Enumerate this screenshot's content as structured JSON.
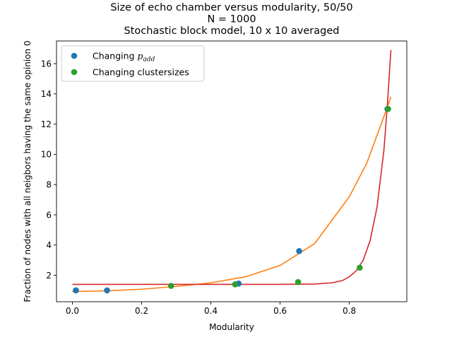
{
  "chart_data": {
    "type": "scatter",
    "title_lines": [
      "Size of echo chamber versus modularity, 50/50",
      "N = 1000",
      "Stochastic block model, 10 x 10 averaged"
    ],
    "xlabel": "Modularity",
    "ylabel": "Fraction of nodes with all neigbors having the same opinion 0",
    "xlim": [
      -0.046,
      0.966
    ],
    "ylim": [
      0.25,
      17.5
    ],
    "xticks": [
      0.0,
      0.2,
      0.4,
      0.6,
      0.8
    ],
    "xtick_labels": [
      "0.0",
      "0.2",
      "0.4",
      "0.6",
      "0.8"
    ],
    "yticks": [
      2,
      4,
      6,
      8,
      10,
      12,
      14,
      16
    ],
    "ytick_labels": [
      "2",
      "4",
      "6",
      "8",
      "10",
      "12",
      "14",
      "16"
    ],
    "legend_position": "upper-left",
    "series": [
      {
        "name_prefix": "Changing ",
        "name_math_base": "p",
        "name_math_sub": "add",
        "kind": "points",
        "color": "#1f77b4",
        "x": [
          0.01,
          0.1,
          0.48,
          0.655,
          0.91
        ],
        "y": [
          1.0,
          1.0,
          1.45,
          3.6,
          13.0
        ]
      },
      {
        "name": "Changing clustersizes",
        "kind": "points",
        "color": "#2ca02c",
        "x": [
          0.285,
          0.47,
          0.652,
          0.83,
          0.912
        ],
        "y": [
          1.3,
          1.4,
          1.55,
          2.5,
          13.0
        ]
      },
      {
        "kind": "line",
        "color": "#ff7f0e",
        "x": [
          0.0,
          0.1,
          0.2,
          0.3,
          0.4,
          0.5,
          0.6,
          0.7,
          0.8,
          0.85,
          0.9,
          0.92
        ],
        "y": [
          0.92,
          0.97,
          1.08,
          1.26,
          1.5,
          1.9,
          2.65,
          4.1,
          7.2,
          9.4,
          12.5,
          13.8
        ]
      },
      {
        "kind": "line",
        "color": "#d62728",
        "x": [
          0.0,
          0.2,
          0.4,
          0.6,
          0.7,
          0.75,
          0.78,
          0.8,
          0.82,
          0.84,
          0.86,
          0.88,
          0.9,
          0.91,
          0.92
        ],
        "y": [
          1.4,
          1.4,
          1.4,
          1.4,
          1.42,
          1.5,
          1.65,
          1.9,
          2.3,
          3.0,
          4.3,
          6.5,
          10.3,
          13.3,
          16.9
        ]
      }
    ]
  }
}
